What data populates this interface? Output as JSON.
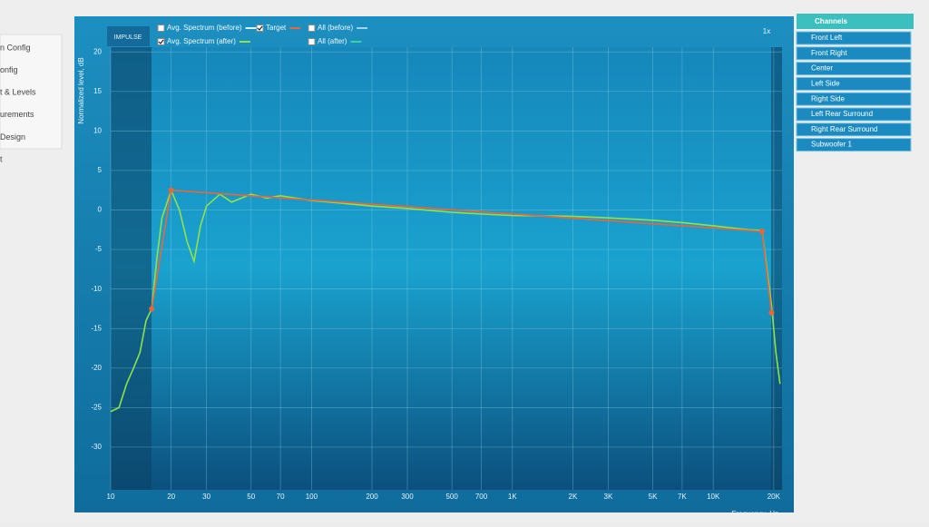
{
  "sidebar": [
    "n Config",
    "onfig",
    "t & Levels",
    "urements",
    "Design",
    "t"
  ],
  "impulse_button": "IMPULSE",
  "zoom": "1x",
  "legend_unchecked": [
    {
      "label": "Avg. Spectrum (before)",
      "color": "#d8f0f8"
    },
    {
      "label": "All (before)",
      "color": "#9fd3e8"
    },
    {
      "label": "All (after)",
      "color": "#3fd0a0"
    }
  ],
  "channels": {
    "title": "Channels",
    "items": [
      "Front Left",
      "Front Right",
      "Center",
      "Left Side",
      "Right Side",
      "Left Rear Surround",
      "Right Rear Surround",
      "Subwoofer 1"
    ]
  },
  "chart_data": {
    "type": "line",
    "y_label": "Normalized level, dB",
    "x_label": "Frequency, Hz",
    "x_scale": "log",
    "grid": true,
    "xlim": [
      10,
      22000
    ],
    "ylim": [
      -35.4,
      20.6
    ],
    "yticks": [
      20,
      15,
      10,
      5,
      0,
      -5,
      -10,
      -15,
      -20,
      -25,
      -30
    ],
    "xticks": [
      10,
      20,
      30,
      50,
      70,
      100,
      200,
      300,
      500,
      700,
      {
        "value": 1000,
        "label": "1K"
      },
      {
        "value": 2000,
        "label": "2K"
      },
      {
        "value": 3000,
        "label": "3K"
      },
      {
        "value": 5000,
        "label": "5K"
      },
      {
        "value": 7000,
        "label": "7K"
      },
      {
        "value": 10000,
        "label": "10K"
      },
      {
        "value": 20000,
        "label": "20K"
      }
    ],
    "series": [
      {
        "name": "Avg. Spectrum (after)",
        "color": "#8fe34a",
        "x": [
          10,
          11,
          12,
          13,
          14,
          15,
          16,
          17,
          18,
          20,
          22,
          24,
          26,
          28,
          30,
          35,
          40,
          50,
          60,
          70,
          100,
          150,
          200,
          300,
          500,
          700,
          1000,
          2000,
          3000,
          5000,
          7000,
          10000,
          15000,
          17500,
          19500,
          20500,
          21500
        ],
        "values": [
          -25.5,
          -25,
          -22,
          -20,
          -18,
          -14,
          -12.5,
          -6,
          -1,
          2.5,
          0,
          -4,
          -6.5,
          -2,
          0.5,
          2,
          1,
          2,
          1.5,
          1.8,
          1.2,
          0.8,
          0.5,
          0.2,
          -0.3,
          -0.5,
          -0.7,
          -0.8,
          -1,
          -1.3,
          -1.6,
          -2,
          -2.5,
          -2.6,
          -12,
          -18,
          -22
        ]
      },
      {
        "name": "Target",
        "color": "#e8663a",
        "x": [
          16,
          20,
          17500,
          19500
        ],
        "values": [
          -12.5,
          2.5,
          -2.7,
          -13
        ]
      }
    ]
  }
}
